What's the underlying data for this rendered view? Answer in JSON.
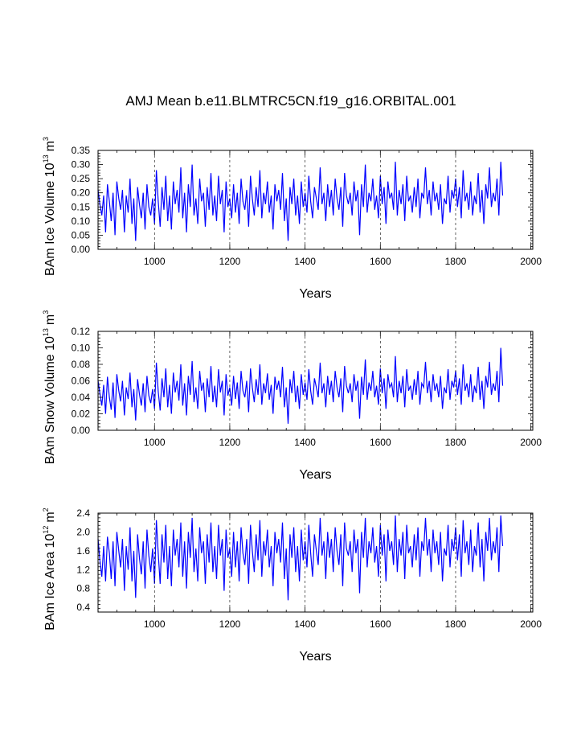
{
  "chart_data": [
    {
      "type": "line",
      "title": "AMJ Mean b.e11.BLMTRC5CN.f19_g16.ORBITAL.001",
      "xlabel": "Years",
      "ylabel_main": "BAm Ice Volume 10",
      "ylabel_exp": "13",
      "ylabel_unit": "m",
      "ylabel_unit_exp": "3",
      "xlim": [
        850,
        2005
      ],
      "ylim": [
        0,
        0.35
      ],
      "xticks": [
        1000,
        1200,
        1400,
        1600,
        1800,
        2000
      ],
      "xtick_labels": [
        "1000",
        "1200",
        "1400",
        "1600",
        "1800",
        "2000"
      ],
      "yticks": [
        0,
        0.05,
        0.1,
        0.15,
        0.2,
        0.25,
        0.3,
        0.35
      ],
      "ytick_labels": [
        "0.00",
        "0.05",
        "0.10",
        "0.15",
        "0.20",
        "0.25",
        "0.30",
        "0.35"
      ],
      "series": [
        {
          "name": "BAm Ice Volume",
          "color": "#0000ff",
          "x_start": 850,
          "x_step": 5,
          "values": [
            0.21,
            0.16,
            0.12,
            0.19,
            0.06,
            0.23,
            0.17,
            0.1,
            0.2,
            0.05,
            0.24,
            0.18,
            0.14,
            0.21,
            0.06,
            0.19,
            0.13,
            0.25,
            0.09,
            0.18,
            0.03,
            0.22,
            0.16,
            0.11,
            0.2,
            0.07,
            0.23,
            0.15,
            0.12,
            0.18,
            0.09,
            0.28,
            0.17,
            0.08,
            0.22,
            0.14,
            0.26,
            0.1,
            0.19,
            0.07,
            0.24,
            0.16,
            0.21,
            0.13,
            0.29,
            0.11,
            0.2,
            0.06,
            0.23,
            0.15,
            0.3,
            0.12,
            0.18,
            0.09,
            0.25,
            0.17,
            0.2,
            0.08,
            0.22,
            0.14,
            0.27,
            0.12,
            0.19,
            0.1,
            0.26,
            0.16,
            0.21,
            0.06,
            0.24,
            0.15,
            0.18,
            0.11,
            0.23,
            0.13,
            0.2,
            0.09,
            0.25,
            0.17,
            0.14,
            0.21,
            0.08,
            0.26,
            0.18,
            0.12,
            0.22,
            0.15,
            0.28,
            0.11,
            0.2,
            0.16,
            0.24,
            0.13,
            0.19,
            0.07,
            0.23,
            0.17,
            0.21,
            0.14,
            0.27,
            0.1,
            0.18,
            0.03,
            0.22,
            0.16,
            0.25,
            0.12,
            0.19,
            0.09,
            0.24,
            0.15,
            0.2,
            0.13,
            0.26,
            0.17,
            0.11,
            0.22,
            0.18,
            0.14,
            0.29,
            0.16,
            0.2,
            0.1,
            0.23,
            0.15,
            0.21,
            0.12,
            0.25,
            0.18,
            0.14,
            0.22,
            0.08,
            0.27,
            0.19,
            0.16,
            0.2,
            0.12,
            0.24,
            0.17,
            0.21,
            0.05,
            0.23,
            0.15,
            0.3,
            0.13,
            0.2,
            0.17,
            0.25,
            0.14,
            0.19,
            0.11,
            0.26,
            0.16,
            0.22,
            0.09,
            0.24,
            0.18,
            0.2,
            0.14,
            0.31,
            0.12,
            0.21,
            0.16,
            0.23,
            0.1,
            0.26,
            0.17,
            0.19,
            0.13,
            0.22,
            0.15,
            0.25,
            0.11,
            0.2,
            0.18,
            0.29,
            0.16,
            0.21,
            0.12,
            0.24,
            0.17,
            0.2,
            0.14,
            0.23,
            0.09,
            0.18,
            0.16,
            0.26,
            0.13,
            0.21,
            0.18,
            0.25,
            0.15,
            0.22,
            0.11,
            0.28,
            0.17,
            0.2,
            0.14,
            0.24,
            0.12,
            0.19,
            0.16,
            0.27,
            0.13,
            0.21,
            0.09,
            0.23,
            0.18,
            0.29,
            0.15,
            0.2,
            0.17,
            0.25,
            0.12,
            0.31,
            0.19
          ]
        }
      ]
    },
    {
      "type": "line",
      "xlabel": "Years",
      "ylabel_main": "BAm Snow Volume 10",
      "ylabel_exp": "13",
      "ylabel_unit": "m",
      "ylabel_unit_exp": "3",
      "xlim": [
        850,
        2005
      ],
      "ylim": [
        0,
        0.12
      ],
      "xticks": [
        1000,
        1200,
        1400,
        1600,
        1800,
        2000
      ],
      "xtick_labels": [
        "1000",
        "1200",
        "1400",
        "1600",
        "1800",
        "2000"
      ],
      "yticks": [
        0,
        0.02,
        0.04,
        0.06,
        0.08,
        0.1,
        0.12
      ],
      "ytick_labels": [
        "0.00",
        "0.02",
        "0.04",
        "0.06",
        "0.08",
        "0.10",
        "0.12"
      ],
      "series": [
        {
          "name": "BAm Snow Volume",
          "color": "#0000ff",
          "x_start": 850,
          "x_step": 5,
          "values": [
            0.06,
            0.045,
            0.03,
            0.055,
            0.02,
            0.065,
            0.04,
            0.025,
            0.058,
            0.015,
            0.068,
            0.048,
            0.035,
            0.06,
            0.018,
            0.052,
            0.038,
            0.07,
            0.028,
            0.05,
            0.012,
            0.062,
            0.044,
            0.03,
            0.057,
            0.022,
            0.066,
            0.042,
            0.033,
            0.05,
            0.026,
            0.082,
            0.047,
            0.024,
            0.063,
            0.04,
            0.075,
            0.028,
            0.055,
            0.02,
            0.07,
            0.046,
            0.06,
            0.036,
            0.08,
            0.03,
            0.057,
            0.018,
            0.066,
            0.043,
            0.084,
            0.034,
            0.052,
            0.026,
            0.072,
            0.048,
            0.058,
            0.022,
            0.063,
            0.04,
            0.078,
            0.034,
            0.054,
            0.028,
            0.074,
            0.046,
            0.06,
            0.018,
            0.068,
            0.042,
            0.052,
            0.03,
            0.066,
            0.038,
            0.058,
            0.026,
            0.072,
            0.048,
            0.04,
            0.06,
            0.022,
            0.075,
            0.052,
            0.034,
            0.062,
            0.043,
            0.08,
            0.031,
            0.057,
            0.045,
            0.069,
            0.037,
            0.055,
            0.02,
            0.065,
            0.049,
            0.06,
            0.04,
            0.077,
            0.028,
            0.052,
            0.008,
            0.062,
            0.045,
            0.072,
            0.034,
            0.054,
            0.026,
            0.068,
            0.043,
            0.058,
            0.037,
            0.074,
            0.048,
            0.031,
            0.063,
            0.052,
            0.04,
            0.082,
            0.045,
            0.057,
            0.028,
            0.066,
            0.043,
            0.06,
            0.034,
            0.072,
            0.052,
            0.04,
            0.063,
            0.022,
            0.078,
            0.054,
            0.045,
            0.057,
            0.034,
            0.068,
            0.048,
            0.06,
            0.014,
            0.065,
            0.043,
            0.086,
            0.037,
            0.058,
            0.048,
            0.072,
            0.04,
            0.054,
            0.031,
            0.075,
            0.045,
            0.063,
            0.026,
            0.068,
            0.052,
            0.057,
            0.04,
            0.09,
            0.034,
            0.06,
            0.045,
            0.066,
            0.028,
            0.074,
            0.048,
            0.054,
            0.037,
            0.062,
            0.043,
            0.072,
            0.031,
            0.057,
            0.052,
            0.083,
            0.045,
            0.06,
            0.034,
            0.068,
            0.048,
            0.057,
            0.04,
            0.066,
            0.026,
            0.052,
            0.045,
            0.074,
            0.037,
            0.06,
            0.052,
            0.072,
            0.043,
            0.063,
            0.031,
            0.08,
            0.048,
            0.057,
            0.04,
            0.068,
            0.034,
            0.054,
            0.045,
            0.077,
            0.037,
            0.06,
            0.026,
            0.066,
            0.052,
            0.083,
            0.043,
            0.057,
            0.048,
            0.072,
            0.034,
            0.1,
            0.054
          ]
        }
      ]
    },
    {
      "type": "line",
      "xlabel": "Years",
      "ylabel_main": "BAm Ice Area 10",
      "ylabel_exp": "12",
      "ylabel_unit": "m",
      "ylabel_unit_exp": "2",
      "xlim": [
        850,
        2005
      ],
      "ylim": [
        0.3,
        2.4
      ],
      "xticks": [
        1000,
        1200,
        1400,
        1600,
        1800,
        2000
      ],
      "xtick_labels": [
        "1000",
        "1200",
        "1400",
        "1600",
        "1800",
        "2000"
      ],
      "yticks": [
        0.4,
        0.8,
        1.2,
        1.6,
        2.0,
        2.4
      ],
      "ytick_labels": [
        "0.4",
        "0.8",
        "1.2",
        "1.6",
        "2.0",
        "2.4"
      ],
      "series": [
        {
          "name": "BAm Ice Area",
          "color": "#0000ff",
          "x_start": 850,
          "x_step": 5,
          "values": [
            1.85,
            1.4,
            1.05,
            1.7,
            0.95,
            1.9,
            1.55,
            1.0,
            1.8,
            0.85,
            2.0,
            1.6,
            1.25,
            1.85,
            0.75,
            1.7,
            1.2,
            2.1,
            0.95,
            1.6,
            0.6,
            1.95,
            1.45,
            1.1,
            1.8,
            0.8,
            2.05,
            1.5,
            1.15,
            1.65,
            0.9,
            2.25,
            1.55,
            0.9,
            1.95,
            1.35,
            2.15,
            1.0,
            1.7,
            0.85,
            2.05,
            1.5,
            1.85,
            1.25,
            2.2,
            1.05,
            1.8,
            0.8,
            2.0,
            1.45,
            2.3,
            1.15,
            1.65,
            0.95,
            2.1,
            1.55,
            1.8,
            0.9,
            1.95,
            1.35,
            2.2,
            1.15,
            1.7,
            1.0,
            2.15,
            1.5,
            1.85,
            0.75,
            2.05,
            1.45,
            1.65,
            1.05,
            2.0,
            1.25,
            1.8,
            0.95,
            2.1,
            1.55,
            1.3,
            1.85,
            0.9,
            2.15,
            1.6,
            1.15,
            1.95,
            1.4,
            2.25,
            1.05,
            1.8,
            1.5,
            2.05,
            1.25,
            1.7,
            0.85,
            2.0,
            1.55,
            1.85,
            1.35,
            2.2,
            1.0,
            1.65,
            0.55,
            1.95,
            1.45,
            2.1,
            1.15,
            1.7,
            0.95,
            2.05,
            1.4,
            1.8,
            1.25,
            2.15,
            1.55,
            1.05,
            1.95,
            1.6,
            1.3,
            2.3,
            1.5,
            1.8,
            1.0,
            2.0,
            1.45,
            1.85,
            1.15,
            2.1,
            1.6,
            1.3,
            1.95,
            0.85,
            2.2,
            1.65,
            1.5,
            1.8,
            1.15,
            2.05,
            1.55,
            1.85,
            0.7,
            2.0,
            1.45,
            2.3,
            1.25,
            1.8,
            1.55,
            2.1,
            1.35,
            1.7,
            1.05,
            2.15,
            1.5,
            1.95,
            0.95,
            2.05,
            1.6,
            1.8,
            1.3,
            2.35,
            1.15,
            1.85,
            1.5,
            2.0,
            1.0,
            2.15,
            1.55,
            1.7,
            1.25,
            1.95,
            1.4,
            2.1,
            1.05,
            1.8,
            1.6,
            2.3,
            1.5,
            1.85,
            1.15,
            2.05,
            1.55,
            1.8,
            1.3,
            2.0,
            0.95,
            1.65,
            1.5,
            2.15,
            1.25,
            1.85,
            1.6,
            2.1,
            1.4,
            1.95,
            1.05,
            2.25,
            1.55,
            1.8,
            1.3,
            2.05,
            1.15,
            1.7,
            1.5,
            2.2,
            1.25,
            1.85,
            0.95,
            2.0,
            1.6,
            2.3,
            1.4,
            1.8,
            1.55,
            2.1,
            1.15,
            2.35,
            1.7
          ]
        }
      ]
    }
  ]
}
